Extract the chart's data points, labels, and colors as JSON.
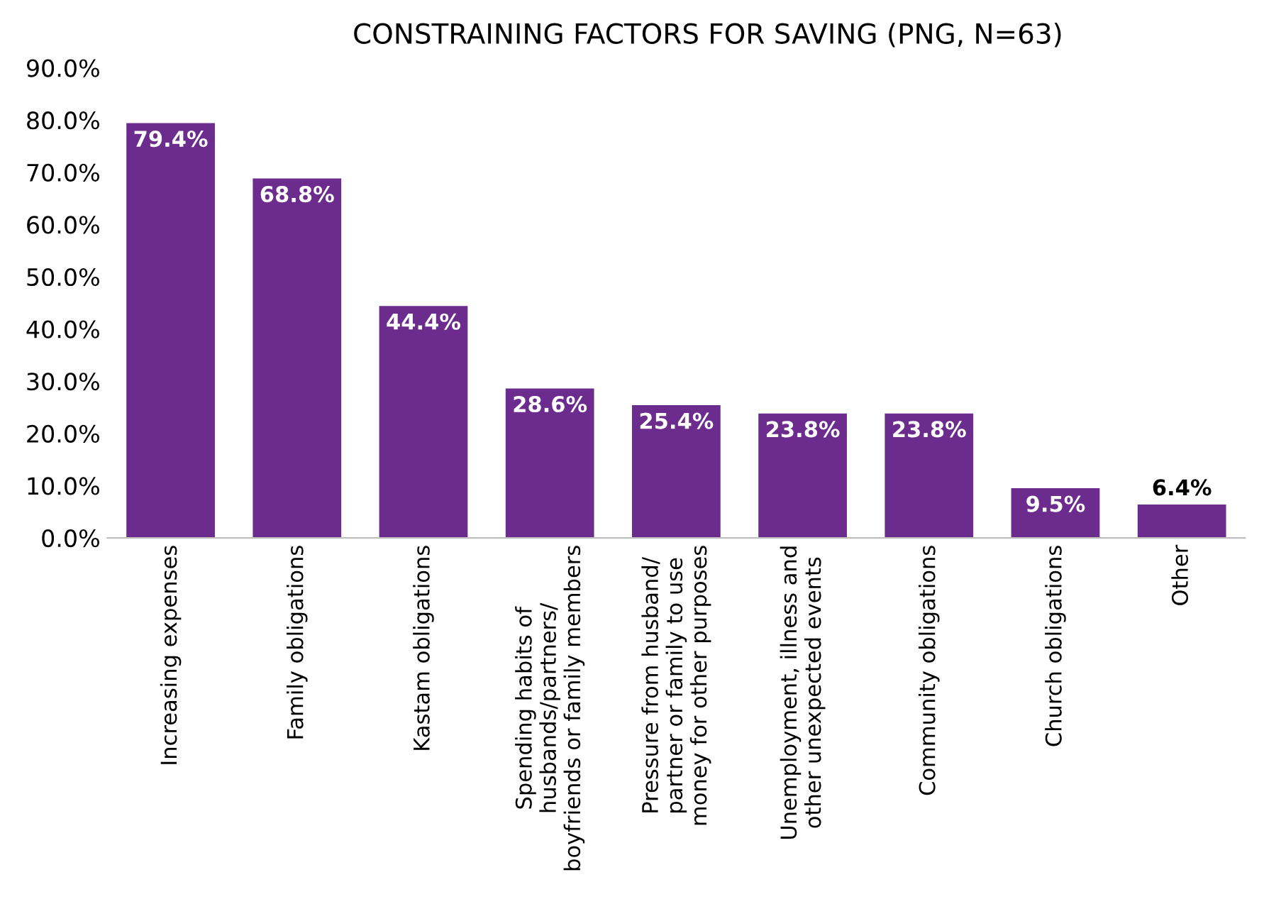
{
  "chart_data": {
    "type": "bar",
    "title": "CONSTRAINING FACTORS FOR SAVING (PNG, N=63)",
    "categories": [
      "Increasing expenses",
      "Family obligations",
      "Kastam obligations",
      "Spending habits of\nhusbands/partners/\nboyfriends or family members",
      "Pressure from husband/\npartner or family to use\nmoney for other purposes",
      "Unemployment, illness and\nother unexpected events",
      "Community obligations",
      "Church obligations",
      "Other"
    ],
    "values": [
      79.4,
      68.8,
      44.4,
      28.6,
      25.4,
      23.8,
      23.8,
      9.5,
      6.4
    ],
    "value_labels": [
      "79.4%",
      "68.8%",
      "44.4%",
      "28.6%",
      "25.4%",
      "23.8%",
      "23.8%",
      "9.5%",
      "6.4%"
    ],
    "color": "#6b2c8e",
    "ylim": [
      0,
      90
    ],
    "yticks": [
      {
        "value": 0,
        "label": "0.0%"
      },
      {
        "value": 10,
        "label": "10.0%"
      },
      {
        "value": 20,
        "label": "20.0%"
      },
      {
        "value": 30,
        "label": "30.0%"
      },
      {
        "value": 40,
        "label": "40.0%"
      },
      {
        "value": 50,
        "label": "50.0%"
      },
      {
        "value": 60,
        "label": "60.0%"
      },
      {
        "value": 70,
        "label": "70.0%"
      },
      {
        "value": 80,
        "label": "80.0%"
      },
      {
        "value": 90,
        "label": "90.0%"
      }
    ],
    "grid": false,
    "legend": false
  }
}
